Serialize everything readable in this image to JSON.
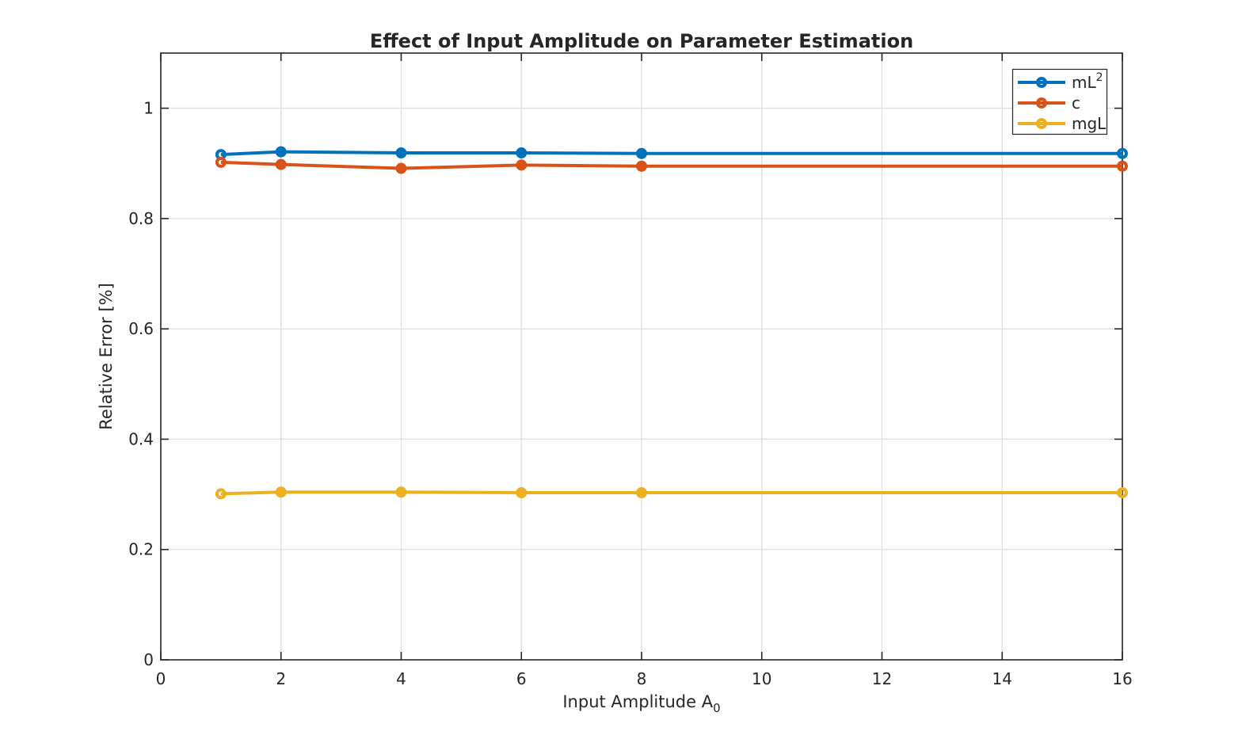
{
  "chart_data": {
    "type": "line",
    "title": "Effect of Input Amplitude on Parameter Estimation",
    "xlabel": {
      "text": "Input Amplitude A",
      "subscript": "0"
    },
    "ylabel": "Relative Error [%]",
    "xlim": [
      0,
      16
    ],
    "ylim": [
      0,
      1.1
    ],
    "xticks": [
      0,
      2,
      4,
      6,
      8,
      10,
      12,
      14,
      16
    ],
    "yticks": [
      0,
      0.2,
      0.4,
      0.6,
      0.8,
      1
    ],
    "grid": true,
    "legend_location": "northeast",
    "x": [
      1,
      2,
      4,
      6,
      8,
      16
    ],
    "series": [
      {
        "label": "mL",
        "label_sup": "2",
        "color": "#0072BD",
        "values": [
          0.916,
          0.921,
          0.919,
          0.919,
          0.918,
          0.918
        ]
      },
      {
        "label": "c",
        "label_sup": "",
        "color": "#D95319",
        "values": [
          0.902,
          0.898,
          0.891,
          0.897,
          0.895,
          0.895
        ]
      },
      {
        "label": "mgL",
        "label_sup": "",
        "color": "#EDB120",
        "values": [
          0.301,
          0.304,
          0.304,
          0.303,
          0.303,
          0.303
        ]
      }
    ],
    "style": {
      "axis_color": "#262626",
      "grid_color": "#e0e0e0",
      "background": "#ffffff",
      "marker": "circle-hollow-endpoints"
    }
  }
}
